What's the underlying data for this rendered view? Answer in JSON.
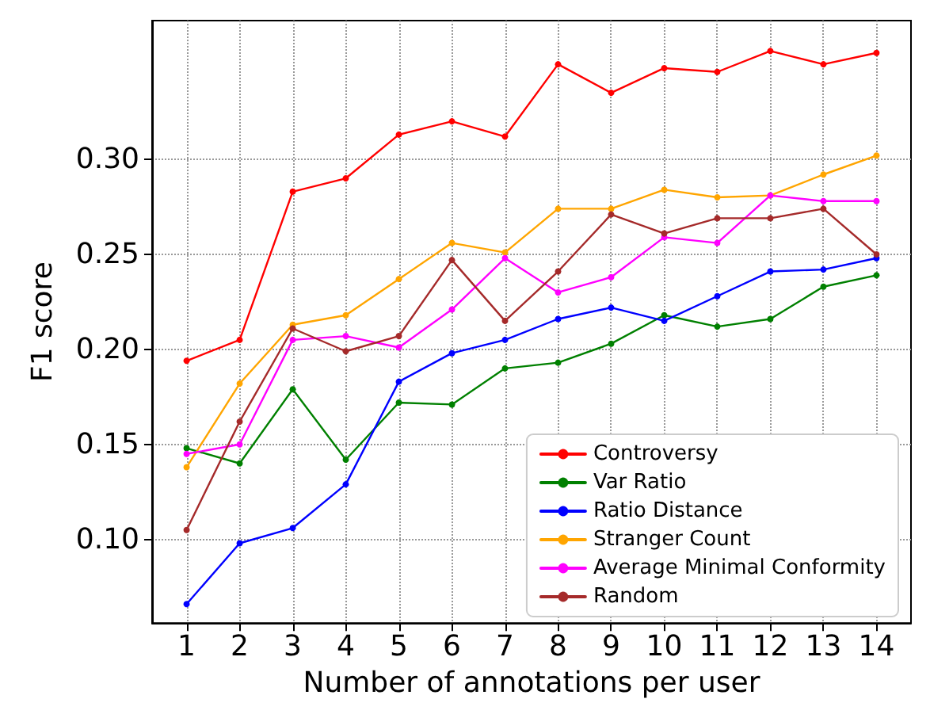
{
  "chart_data": {
    "type": "line",
    "xlabel": "Number of annotations per user",
    "ylabel": "F1 score",
    "x": [
      1,
      2,
      3,
      4,
      5,
      6,
      7,
      8,
      9,
      10,
      11,
      12,
      13,
      14
    ],
    "xlim": [
      0.35,
      14.65
    ],
    "xticks": [
      1,
      2,
      3,
      4,
      5,
      6,
      7,
      8,
      9,
      10,
      11,
      12,
      13,
      14
    ],
    "ylim": [
      0.056,
      0.373
    ],
    "yticks": [
      {
        "value": 0.1,
        "label": "0.10"
      },
      0.15,
      {
        "value": 0.2,
        "label": "0.20"
      },
      0.25,
      {
        "value": 0.3,
        "label": "0.30"
      }
    ],
    "grid": true,
    "legend": "bottom right",
    "marker": "circle",
    "line_style": "solid",
    "series": [
      {
        "name": "Controversy",
        "color": "#ff0000",
        "values": [
          0.194,
          0.205,
          0.283,
          0.29,
          0.313,
          0.32,
          0.312,
          0.35,
          0.335,
          0.348,
          0.346,
          0.357,
          0.35,
          0.356
        ]
      },
      {
        "name": "Var Ratio",
        "color": "#008000",
        "values": [
          0.148,
          0.14,
          0.179,
          0.142,
          0.172,
          0.171,
          0.19,
          0.193,
          0.203,
          0.218,
          0.212,
          0.216,
          0.233,
          0.239
        ]
      },
      {
        "name": "Ratio Distance",
        "color": "#0000ff",
        "values": [
          0.066,
          0.098,
          0.106,
          0.129,
          0.183,
          0.198,
          0.205,
          0.216,
          0.222,
          0.215,
          0.228,
          0.241,
          0.242,
          0.248
        ]
      },
      {
        "name": "Stranger Count",
        "color": "#ffa500",
        "values": [
          0.138,
          0.182,
          0.213,
          0.218,
          0.237,
          0.256,
          0.251,
          0.274,
          0.274,
          0.284,
          0.28,
          0.281,
          0.292,
          0.302
        ]
      },
      {
        "name": "Average Minimal Conformity",
        "color": "#ff00ff",
        "values": [
          0.145,
          0.15,
          0.205,
          0.207,
          0.201,
          0.221,
          0.248,
          0.23,
          0.238,
          0.259,
          0.256,
          0.281,
          0.278,
          0.278
        ]
      },
      {
        "name": "Random",
        "color": "#a52a2a",
        "values": [
          0.105,
          0.162,
          0.211,
          0.199,
          0.207,
          0.247,
          0.215,
          0.241,
          0.271,
          0.261,
          0.269,
          0.269,
          0.274,
          0.25
        ]
      }
    ]
  }
}
